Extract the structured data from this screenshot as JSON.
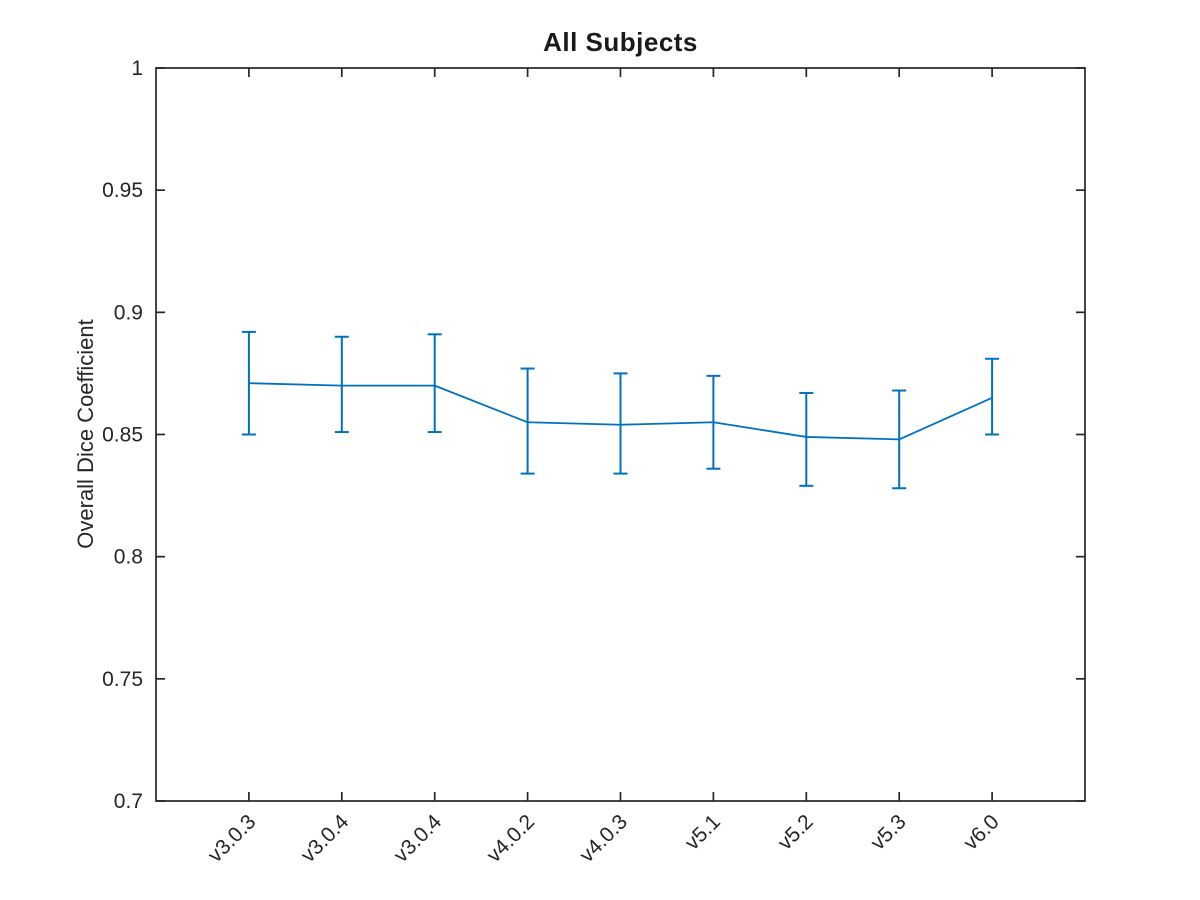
{
  "figure": {
    "background": "#ffffff"
  },
  "chart_data": {
    "type": "line",
    "subtype": "errorbar",
    "title": "All Subjects",
    "xlabel": "",
    "ylabel": "Overall Dice Coefficient",
    "categories": [
      "v3.0.3",
      "v3.0.4",
      "v3.0.4",
      "v4.0.2",
      "v4.0.3",
      "v5.1",
      "v5.2",
      "v5.3",
      "v6.0"
    ],
    "series": [
      {
        "name": "Overall Dice Coefficient",
        "values": [
          0.871,
          0.87,
          0.87,
          0.855,
          0.854,
          0.855,
          0.849,
          0.848,
          0.865
        ],
        "upper": [
          0.892,
          0.89,
          0.891,
          0.877,
          0.875,
          0.874,
          0.867,
          0.868,
          0.881
        ],
        "lower": [
          0.85,
          0.851,
          0.851,
          0.834,
          0.834,
          0.836,
          0.829,
          0.828,
          0.85
        ]
      }
    ],
    "ylim": [
      0.7,
      1.0
    ],
    "xlim": [
      0,
      10
    ],
    "yticks": [
      0.7,
      0.75,
      0.8,
      0.85,
      0.9,
      0.95,
      1
    ],
    "ytick_labels": [
      "0.7",
      "0.75",
      "0.8",
      "0.85",
      "0.9",
      "0.95",
      "1"
    ],
    "xtick_rotation_deg": -45,
    "grid": false,
    "legend": null,
    "marker": "none",
    "line_color": "#0072BD",
    "axis_color": "#262626",
    "box": true,
    "tick_direction": "in"
  }
}
